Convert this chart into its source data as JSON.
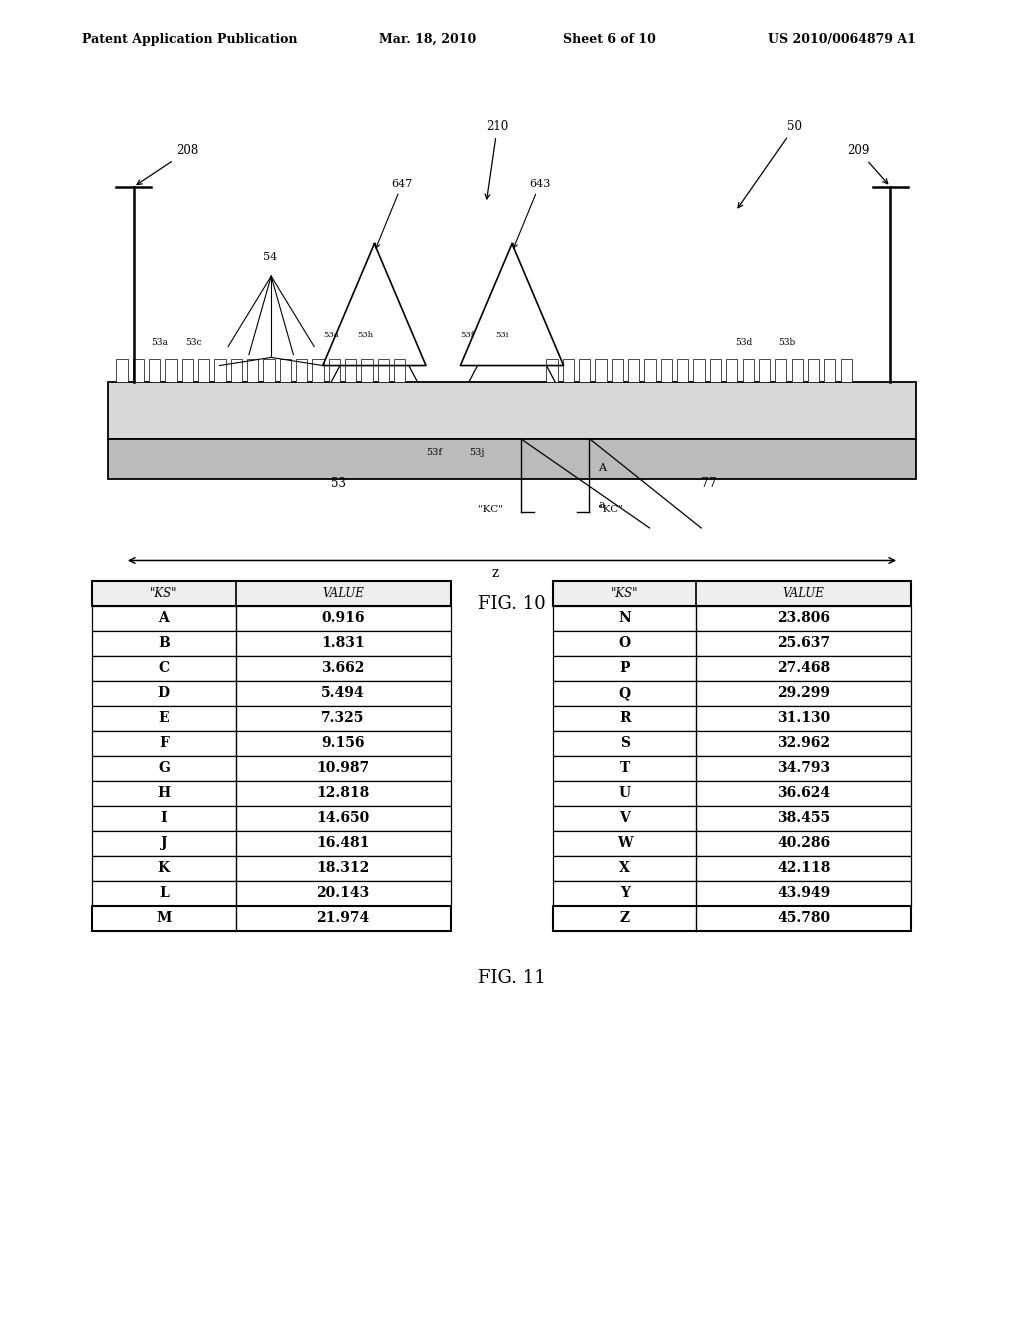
{
  "bg_color": "#ffffff",
  "header_text": "Patent Application Publication",
  "header_date": "Mar. 18, 2010",
  "header_sheet": "Sheet 6 of 10",
  "header_patent": "US 2010/0064879 A1",
  "fig10_label": "FIG. 10",
  "fig11_label": "FIG. 11",
  "table1_header": [
    "\"KS\"",
    "VALUE"
  ],
  "table1_rows": [
    [
      "A",
      "0.916"
    ],
    [
      "B",
      "1.831"
    ],
    [
      "C",
      "3.662"
    ],
    [
      "D",
      "5.494"
    ],
    [
      "E",
      "7.325"
    ],
    [
      "F",
      "9.156"
    ],
    [
      "G",
      "10.987"
    ],
    [
      "H",
      "12.818"
    ],
    [
      "I",
      "14.650"
    ],
    [
      "J",
      "16.481"
    ],
    [
      "K",
      "18.312"
    ],
    [
      "L",
      "20.143"
    ],
    [
      "M",
      "21.974"
    ]
  ],
  "table2_header": [
    "\"KS\"",
    "VALUE"
  ],
  "table2_rows": [
    [
      "N",
      "23.806"
    ],
    [
      "O",
      "25.637"
    ],
    [
      "P",
      "27.468"
    ],
    [
      "Q",
      "29.299"
    ],
    [
      "R",
      "31.130"
    ],
    [
      "S",
      "32.962"
    ],
    [
      "T",
      "34.793"
    ],
    [
      "U",
      "36.624"
    ],
    [
      "V",
      "38.455"
    ],
    [
      "W",
      "40.286"
    ],
    [
      "X",
      "42.118"
    ],
    [
      "Y",
      "43.949"
    ],
    [
      "Z",
      "45.780"
    ]
  ]
}
